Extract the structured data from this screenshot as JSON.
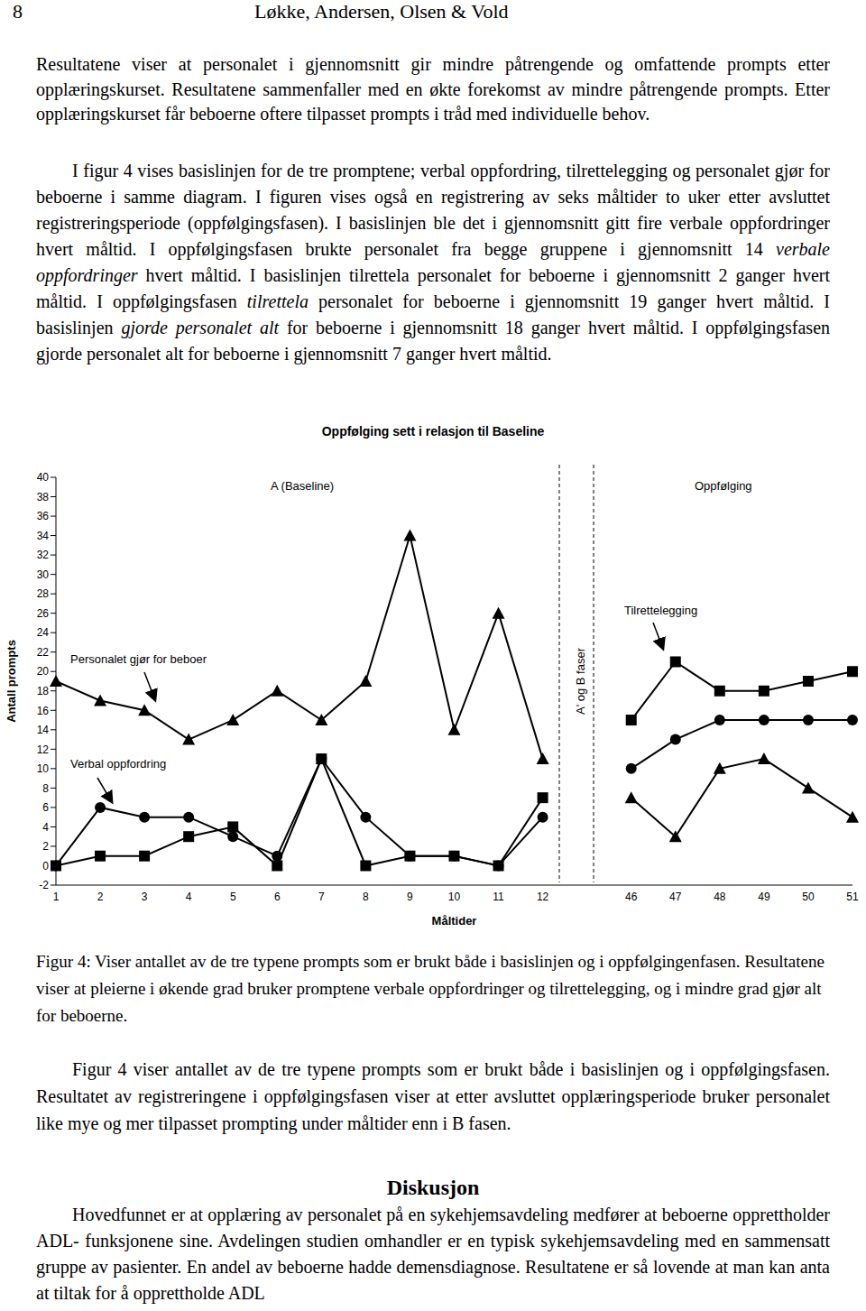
{
  "header": {
    "page": "8",
    "running_head": "Løkke, Andersen, Olsen & Vold"
  },
  "body_top": [
    [
      {
        "text": "Resultatene viser at personalet i gjennomsnitt gir mindre påtrengende og omfattende prompts etter opplæringskurset. Resultatene sammenfaller med en økte forekomst av mindre påtrengende prompts. Etter opplæringskurset får beboerne oftere tilpasset prompts i tråd med individuelle behov."
      }
    ],
    [
      {
        "text": "I figur 4 vises basislinjen for de tre promptene; verbal oppfordring, tilrettelegging og personalet gjør for beboerne i samme diagram. I figuren vises også en registrering av seks måltider to uker etter avsluttet registreringsperiode (oppfølgingsfasen). I basislinjen ble det i gjennomsnitt gitt fire verbale oppfordringer hvert måltid. I oppfølgingsfasen brukte personalet fra begge gruppene i gjennomsnitt 14 "
      },
      {
        "italic": "verbale oppfordringer"
      },
      {
        "text": " hvert måltid. I basislinjen tilrettela personalet for beboerne i gjennomsnitt 2 ganger hvert måltid. I oppfølgingsfasen "
      },
      {
        "italic": "tilrettela"
      },
      {
        "text": " personalet for beboerne i gjennomsnitt 19 ganger hvert måltid. I basislinjen "
      },
      {
        "italic": "gjorde personalet alt"
      },
      {
        "text": " for beboerne i gjennomsnitt 18 ganger hvert måltid. I oppfølgingsfasen gjorde personalet alt for beboerne i gjennomsnitt 7 ganger hvert måltid."
      }
    ]
  ],
  "chart_data": {
    "type": "line",
    "title": "Oppfølging sett i relasjon til Baseline",
    "x_label": "Måltider",
    "y_label": "Antall prompts",
    "categories": [
      "1",
      "2",
      "3",
      "4",
      "5",
      "6",
      "7",
      "8",
      "9",
      "10",
      "11",
      "12",
      null,
      "46",
      "47",
      "48",
      "49",
      "50",
      "51"
    ],
    "series": [
      {
        "name": "Personalet gjør for beboer",
        "color": "#000000",
        "marker": "triangle",
        "values": [
          19,
          17,
          16,
          13,
          15,
          18,
          15,
          19,
          34,
          14,
          26,
          11,
          null,
          7,
          3,
          10,
          11,
          8,
          5
        ]
      },
      {
        "name": "Verbal oppfordring",
        "color": "#000000",
        "marker": "circle",
        "values": [
          0,
          6,
          5,
          5,
          3,
          1,
          11,
          5,
          1,
          1,
          0,
          5,
          null,
          10,
          13,
          15,
          15,
          15,
          15
        ]
      },
      {
        "name": "Tilrettelegging",
        "color": "#000000",
        "marker": "square",
        "values": [
          0,
          1,
          1,
          3,
          4,
          0,
          11,
          0,
          1,
          1,
          0,
          7,
          null,
          15,
          21,
          18,
          18,
          19,
          20
        ]
      }
    ],
    "ylim": [
      -2,
      40
    ],
    "yticks": [
      -2,
      0,
      2,
      4,
      6,
      8,
      10,
      12,
      14,
      16,
      18,
      20,
      22,
      24,
      26,
      28,
      30,
      32,
      34,
      36,
      38,
      40
    ],
    "grid": false,
    "annotations": [
      "A (Baseline)",
      "Oppfølging",
      "Personalet gjør for beboer",
      "Verbal oppfordring",
      "Tilrettelegging",
      "A' og B faser"
    ]
  },
  "caption": [
    {
      "text": "Figur 4: Viser antallet av de tre typene prompts som er brukt både i basislinjen og i oppfølgingenfasen. Resultatene viser at pleierne i økende grad bruker promptene verbale oppfordringer og tilrettelegging, og i mindre grad gjør alt for beboerne."
    }
  ],
  "body_after": [
    {
      "text": "Figur 4 viser antallet av de tre typene prompts som er brukt både i basislinjen og i oppfølgingsfasen. Resultatet av registreringene i oppfølgingsfasen viser at etter avsluttet opplæringsperiode bruker personalet like mye og mer tilpasset prompting under måltider enn i B fasen."
    }
  ],
  "discussion": {
    "heading": "Diskusjon",
    "text": [
      {
        "text": "Hovedfunnet er at opplæring av personalet på en sykehjemsavdeling medfører at beboerne opprettholder ADL- funksjonene sine. Avdelingen studien omhandler er en typisk sykehjemsavdeling med en sammensatt gruppe av pasienter. En andel av beboerne hadde demensdiagnose. Resultatene er så lovende at man kan anta at tiltak for å opprettholde ADL"
      }
    ]
  }
}
